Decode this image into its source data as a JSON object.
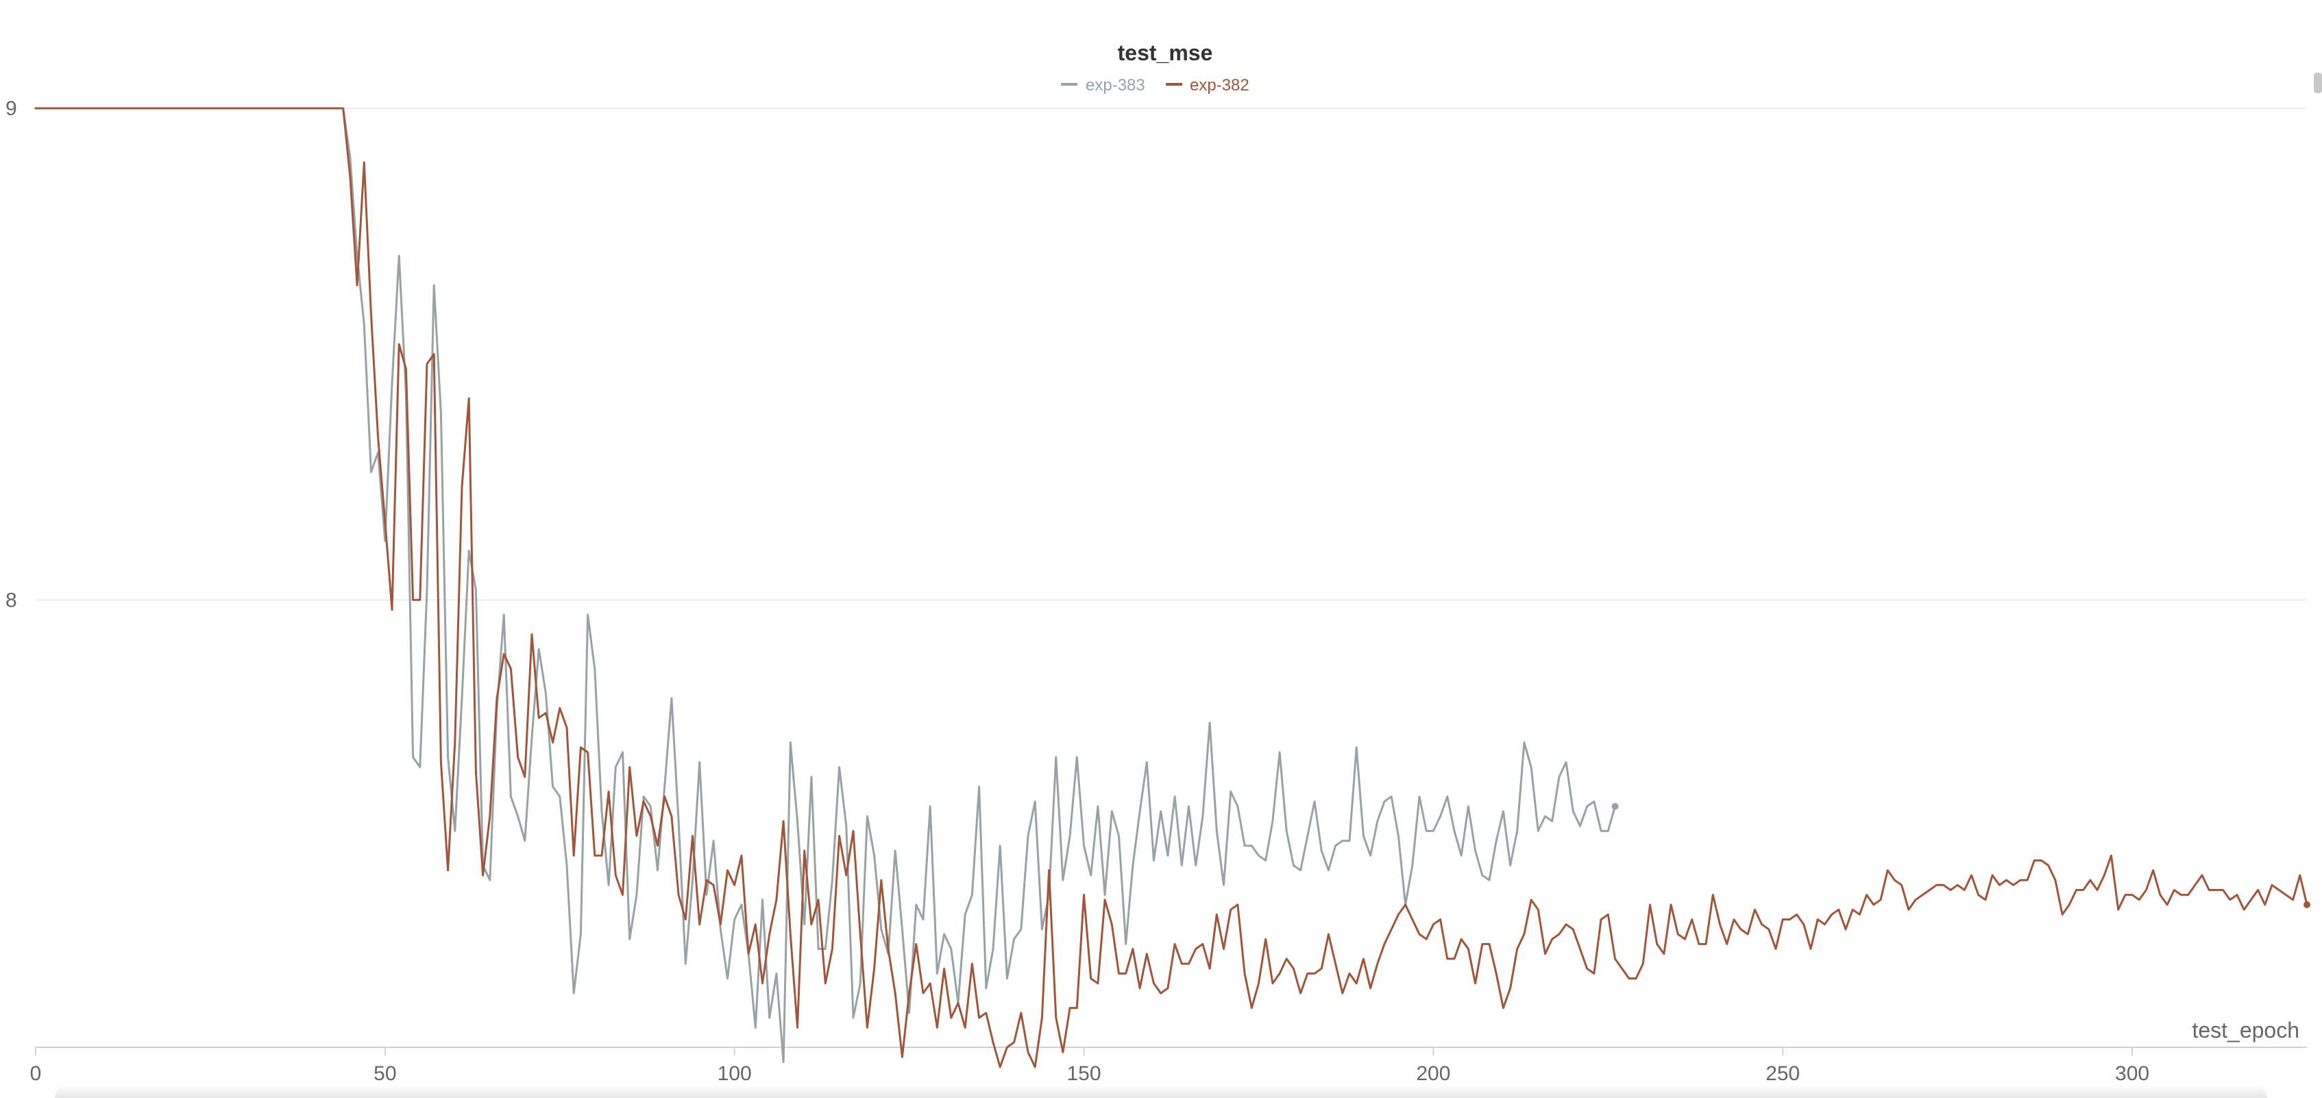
{
  "chart_data": {
    "type": "line",
    "title": "test_mse",
    "xlabel": "test_epoch",
    "ylabel": "",
    "xlim": [
      0,
      325
    ],
    "ylim": [
      7.09,
      9.0
    ],
    "x_ticks": [
      0,
      50,
      100,
      150,
      200,
      250,
      300
    ],
    "y_ticks": [
      8,
      9
    ],
    "y_tick_labels": [
      "8",
      "9"
    ],
    "grid": true,
    "legend_position": "top-center",
    "series": [
      {
        "name": "exp-383",
        "color": "#98a2a6",
        "x_start": 0,
        "x_step": 1,
        "end_marker": true,
        "values": [
          9,
          9,
          9,
          9,
          9,
          9,
          9,
          9,
          9,
          9,
          9,
          9,
          9,
          9,
          9,
          9,
          9,
          9,
          9,
          9,
          9,
          9,
          9,
          9,
          9,
          9,
          9,
          9,
          9,
          9,
          9,
          9,
          9,
          9,
          9,
          9,
          9,
          9,
          9,
          9,
          9,
          9,
          9,
          9,
          9,
          8.9,
          8.7,
          8.56,
          8.26,
          8.3,
          8.12,
          8.44,
          8.7,
          8.42,
          7.68,
          7.66,
          8.02,
          8.64,
          8.38,
          7.68,
          7.53,
          7.8,
          8.1,
          8.02,
          7.46,
          7.43,
          7.78,
          7.97,
          7.6,
          7.56,
          7.51,
          7.72,
          7.9,
          7.81,
          7.62,
          7.6,
          7.46,
          7.2,
          7.32,
          7.97,
          7.86,
          7.57,
          7.42,
          7.66,
          7.69,
          7.31,
          7.4,
          7.6,
          7.58,
          7.45,
          7.62,
          7.8,
          7.55,
          7.26,
          7.43,
          7.67,
          7.4,
          7.51,
          7.33,
          7.23,
          7.35,
          7.38,
          7.28,
          7.13,
          7.39,
          7.15,
          7.24,
          7.06,
          7.71,
          7.55,
          7.34,
          7.64,
          7.29,
          7.29,
          7.43,
          7.66,
          7.54,
          7.15,
          7.22,
          7.56,
          7.48,
          7.33,
          7.28,
          7.49,
          7.33,
          7.16,
          7.38,
          7.35,
          7.58,
          7.24,
          7.32,
          7.29,
          7.18,
          7.36,
          7.4,
          7.62,
          7.21,
          7.29,
          7.5,
          7.23,
          7.31,
          7.33,
          7.52,
          7.59,
          7.33,
          7.4,
          7.68,
          7.43,
          7.52,
          7.68,
          7.5,
          7.44,
          7.58,
          7.4,
          7.57,
          7.52,
          7.3,
          7.46,
          7.57,
          7.67,
          7.47,
          7.57,
          7.48,
          7.6,
          7.46,
          7.58,
          7.46,
          7.56,
          7.75,
          7.53,
          7.42,
          7.61,
          7.58,
          7.5,
          7.5,
          7.48,
          7.47,
          7.55,
          7.69,
          7.53,
          7.46,
          7.45,
          7.52,
          7.59,
          7.49,
          7.45,
          7.5,
          7.51,
          7.51,
          7.7,
          7.52,
          7.48,
          7.55,
          7.59,
          7.6,
          7.52,
          7.38,
          7.46,
          7.6,
          7.53,
          7.53,
          7.56,
          7.6,
          7.53,
          7.48,
          7.58,
          7.49,
          7.44,
          7.43,
          7.51,
          7.57,
          7.46,
          7.53,
          7.71,
          7.66,
          7.53,
          7.56,
          7.55,
          7.64,
          7.67,
          7.57,
          7.54,
          7.58,
          7.59,
          7.53,
          7.53,
          7.58
        ]
      },
      {
        "name": "exp-382",
        "color": "#a0563c",
        "x_start": 0,
        "x_step": 1,
        "end_marker": true,
        "values": [
          9,
          9,
          9,
          9,
          9,
          9,
          9,
          9,
          9,
          9,
          9,
          9,
          9,
          9,
          9,
          9,
          9,
          9,
          9,
          9,
          9,
          9,
          9,
          9,
          9,
          9,
          9,
          9,
          9,
          9,
          9,
          9,
          9,
          9,
          9,
          9,
          9,
          9,
          9,
          9,
          9,
          9,
          9,
          9,
          9,
          8.86,
          8.64,
          8.89,
          8.58,
          8.33,
          8.16,
          7.98,
          8.52,
          8.47,
          8.0,
          8.0,
          8.48,
          8.5,
          7.67,
          7.45,
          7.71,
          8.23,
          8.41,
          7.65,
          7.44,
          7.56,
          7.8,
          7.89,
          7.86,
          7.68,
          7.64,
          7.93,
          7.76,
          7.77,
          7.71,
          7.78,
          7.74,
          7.48,
          7.7,
          7.69,
          7.48,
          7.48,
          7.61,
          7.44,
          7.4,
          7.66,
          7.52,
          7.59,
          7.56,
          7.5,
          7.6,
          7.56,
          7.4,
          7.35,
          7.52,
          7.34,
          7.43,
          7.42,
          7.34,
          7.45,
          7.42,
          7.48,
          7.28,
          7.34,
          7.22,
          7.32,
          7.39,
          7.55,
          7.32,
          7.13,
          7.49,
          7.34,
          7.39,
          7.22,
          7.29,
          7.52,
          7.44,
          7.53,
          7.32,
          7.13,
          7.25,
          7.43,
          7.29,
          7.2,
          7.07,
          7.2,
          7.3,
          7.2,
          7.22,
          7.13,
          7.25,
          7.15,
          7.18,
          7.13,
          7.26,
          7.15,
          7.16,
          7.1,
          7.05,
          7.09,
          7.1,
          7.16,
          7.08,
          7.05,
          7.15,
          7.45,
          7.15,
          7.08,
          7.17,
          7.17,
          7.4,
          7.23,
          7.22,
          7.39,
          7.34,
          7.24,
          7.24,
          7.29,
          7.21,
          7.28,
          7.22,
          7.2,
          7.21,
          7.3,
          7.26,
          7.26,
          7.29,
          7.3,
          7.25,
          7.36,
          7.29,
          7.37,
          7.38,
          7.24,
          7.17,
          7.22,
          7.31,
          7.22,
          7.24,
          7.27,
          7.25,
          7.2,
          7.24,
          7.24,
          7.25,
          7.32,
          7.26,
          7.2,
          7.24,
          7.22,
          7.27,
          7.21,
          7.26,
          7.3,
          7.33,
          7.36,
          7.38,
          7.35,
          7.32,
          7.31,
          7.34,
          7.35,
          7.27,
          7.27,
          7.31,
          7.29,
          7.22,
          7.3,
          7.3,
          7.24,
          7.17,
          7.21,
          7.29,
          7.32,
          7.39,
          7.37,
          7.28,
          7.31,
          7.32,
          7.34,
          7.33,
          7.29,
          7.25,
          7.24,
          7.35,
          7.36,
          7.27,
          7.25,
          7.23,
          7.23,
          7.26,
          7.38,
          7.3,
          7.28,
          7.38,
          7.32,
          7.31,
          7.35,
          7.3,
          7.3,
          7.4,
          7.34,
          7.3,
          7.35,
          7.33,
          7.32,
          7.37,
          7.34,
          7.33,
          7.29,
          7.35,
          7.35,
          7.36,
          7.34,
          7.29,
          7.35,
          7.34,
          7.36,
          7.37,
          7.33,
          7.37,
          7.36,
          7.4,
          7.38,
          7.39,
          7.45,
          7.43,
          7.42,
          7.37,
          7.39,
          7.4,
          7.41,
          7.42,
          7.42,
          7.41,
          7.42,
          7.41,
          7.44,
          7.4,
          7.39,
          7.44,
          7.42,
          7.43,
          7.42,
          7.43,
          7.43,
          7.47,
          7.47,
          7.46,
          7.43,
          7.36,
          7.38,
          7.41,
          7.41,
          7.43,
          7.41,
          7.44,
          7.48,
          7.37,
          7.4,
          7.4,
          7.39,
          7.41,
          7.45,
          7.4,
          7.38,
          7.41,
          7.4,
          7.4,
          7.42,
          7.44,
          7.41,
          7.41,
          7.41,
          7.39,
          7.4,
          7.37,
          7.39,
          7.41,
          7.38,
          7.42,
          7.41,
          7.4,
          7.39,
          7.44,
          7.38
        ]
      }
    ]
  }
}
